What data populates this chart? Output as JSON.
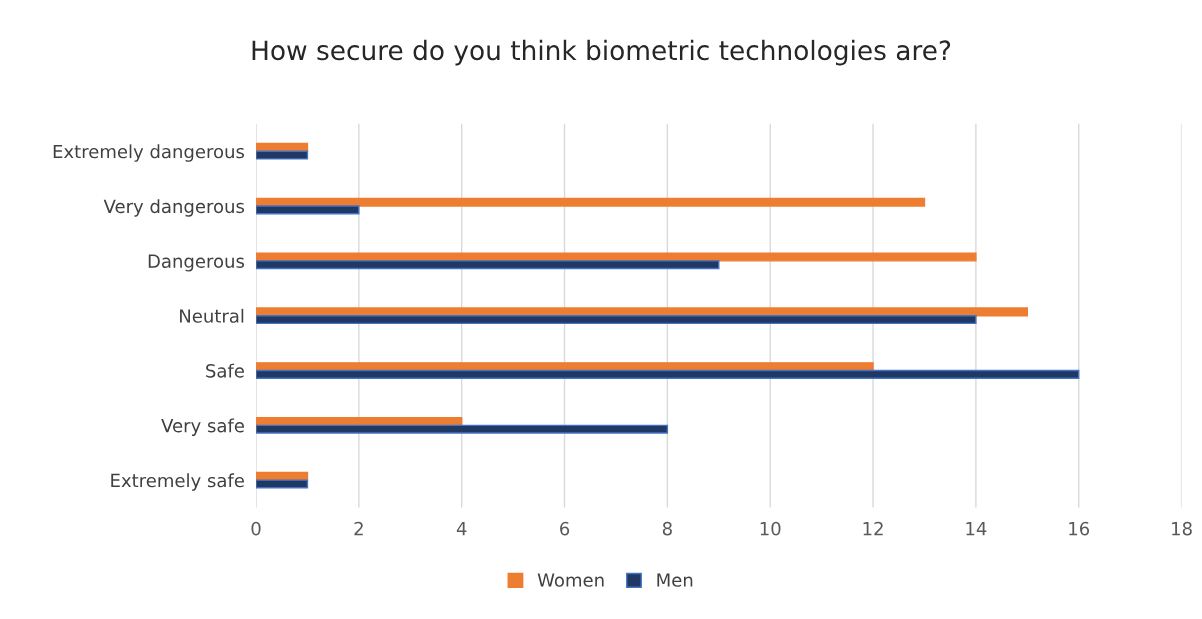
{
  "chart_data": {
    "type": "bar",
    "orientation": "horizontal",
    "title": "How secure do you think biometric technologies are?",
    "categories": [
      "Extremely dangerous",
      "Very dangerous",
      "Dangerous",
      "Neutral",
      "Safe",
      "Very safe",
      "Extremely safe"
    ],
    "series": [
      {
        "name": "Women",
        "color": "#ed7d31",
        "values": [
          1,
          13,
          14,
          15,
          12,
          4,
          1
        ]
      },
      {
        "name": "Men",
        "color": "#203864",
        "values": [
          1,
          2,
          9,
          14,
          16,
          8,
          1
        ]
      }
    ],
    "xlim": [
      0,
      18
    ],
    "xticks": [
      0,
      2,
      4,
      6,
      8,
      10,
      12,
      14,
      16,
      18
    ],
    "grid": "x",
    "legend": "bottom"
  }
}
